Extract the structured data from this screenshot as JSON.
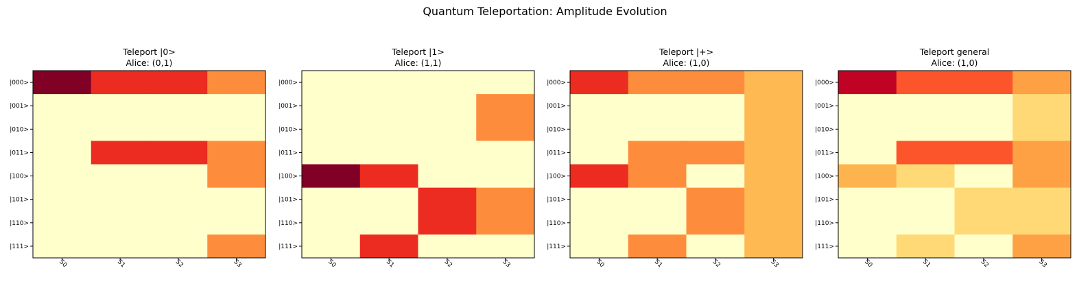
{
  "figure": {
    "title": "Quantum Teleportation: Amplitude Evolution"
  },
  "colors": {
    "scale": [
      "#ffffcc",
      "#ffeda0",
      "#fed976",
      "#feb24c",
      "#fd8d3c",
      "#fc4e2a",
      "#e31a1c",
      "#bd0026",
      "#800026"
    ],
    "frame": "#000000"
  },
  "chart_data": [
    {
      "type": "heatmap",
      "title": "Teleport |0>",
      "subtitle": "Alice: (0,1)",
      "x": [
        "S0",
        "S1",
        "S2",
        "S3"
      ],
      "y": [
        "|000>",
        "|001>",
        "|010>",
        "|011>",
        "|100>",
        "|101>",
        "|110>",
        "|111>"
      ],
      "values": [
        [
          1.0,
          0.707,
          0.707,
          0.5
        ],
        [
          0,
          0,
          0,
          0
        ],
        [
          0,
          0,
          0,
          0
        ],
        [
          0,
          0.707,
          0.707,
          0.5
        ],
        [
          0,
          0,
          0,
          0.5
        ],
        [
          0,
          0,
          0,
          0
        ],
        [
          0,
          0,
          0,
          0
        ],
        [
          0,
          0,
          0,
          0.5
        ]
      ],
      "vmin": 0,
      "vmax": 1
    },
    {
      "type": "heatmap",
      "title": "Teleport |1>",
      "subtitle": "Alice: (1,1)",
      "x": [
        "S0",
        "S1",
        "S2",
        "S3"
      ],
      "y": [
        "|000>",
        "|001>",
        "|010>",
        "|011>",
        "|100>",
        "|101>",
        "|110>",
        "|111>"
      ],
      "values": [
        [
          0,
          0,
          0,
          0
        ],
        [
          0,
          0,
          0,
          0.5
        ],
        [
          0,
          0,
          0,
          0.5
        ],
        [
          0,
          0,
          0,
          0
        ],
        [
          1.0,
          0.707,
          0,
          0
        ],
        [
          0,
          0,
          0.707,
          0.5
        ],
        [
          0,
          0,
          0.707,
          0.5
        ],
        [
          0,
          0.707,
          0,
          0
        ]
      ],
      "vmin": 0,
      "vmax": 1
    },
    {
      "type": "heatmap",
      "title": "Teleport |+>",
      "subtitle": "Alice: (1,0)",
      "x": [
        "S0",
        "S1",
        "S2",
        "S3"
      ],
      "y": [
        "|000>",
        "|001>",
        "|010>",
        "|011>",
        "|100>",
        "|101>",
        "|110>",
        "|111>"
      ],
      "values": [
        [
          0.707,
          0.5,
          0.5,
          0.354
        ],
        [
          0,
          0,
          0,
          0.354
        ],
        [
          0,
          0,
          0,
          0.354
        ],
        [
          0,
          0.5,
          0.5,
          0.354
        ],
        [
          0.707,
          0.5,
          0,
          0.354
        ],
        [
          0,
          0,
          0.5,
          0.354
        ],
        [
          0,
          0,
          0.5,
          0.354
        ],
        [
          0,
          0.5,
          0,
          0.354
        ]
      ],
      "vmin": 0,
      "vmax": 1
    },
    {
      "type": "heatmap",
      "title": "Teleport general",
      "subtitle": "Alice: (1,0)",
      "x": [
        "S0",
        "S1",
        "S2",
        "S3"
      ],
      "y": [
        "|000>",
        "|001>",
        "|010>",
        "|011>",
        "|100>",
        "|101>",
        "|110>",
        "|111>"
      ],
      "values": [
        [
          0.866,
          0.612,
          0.612,
          0.433
        ],
        [
          0,
          0,
          0,
          0.25
        ],
        [
          0,
          0,
          0,
          0.25
        ],
        [
          0,
          0.612,
          0.612,
          0.433
        ],
        [
          0.37,
          0.25,
          0,
          0.433
        ],
        [
          0,
          0,
          0.25,
          0.25
        ],
        [
          0,
          0,
          0.25,
          0.25
        ],
        [
          0,
          0.25,
          0,
          0.433
        ]
      ],
      "vmin": 0,
      "vmax": 1
    }
  ]
}
